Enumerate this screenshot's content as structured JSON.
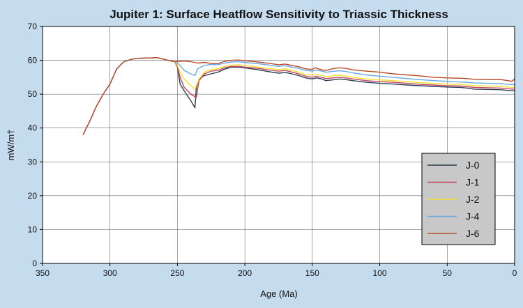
{
  "chart_data": {
    "type": "line",
    "title": "Jupiter 1: Surface Heatflow Sensitivity to Triassic Thickness",
    "xlabel": "Age (Ma)",
    "ylabel": "mW/m†",
    "xlim": [
      350,
      0
    ],
    "ylim": [
      0,
      70
    ],
    "xticks": [
      350,
      300,
      250,
      200,
      150,
      100,
      50,
      0
    ],
    "yticks": [
      0,
      10,
      20,
      30,
      40,
      50,
      60,
      70
    ],
    "x_reversed": true,
    "grid": true,
    "legend_position": "bottom-right",
    "series": [
      {
        "name": "J-0",
        "color": "#2a3d50",
        "points": [
          [
            320,
            38
          ],
          [
            315,
            42
          ],
          [
            310,
            46.5
          ],
          [
            305,
            50
          ],
          [
            300,
            53
          ],
          [
            295,
            57.5
          ],
          [
            290,
            59.5
          ],
          [
            285,
            60.2
          ],
          [
            280,
            60.6
          ],
          [
            270,
            60.7
          ],
          [
            265,
            60.8
          ],
          [
            260,
            60.3
          ],
          [
            255,
            59.8
          ],
          [
            252,
            59.6
          ],
          [
            250,
            58
          ],
          [
            248,
            53
          ],
          [
            245,
            51
          ],
          [
            240,
            48
          ],
          [
            237,
            46
          ],
          [
            236,
            52
          ],
          [
            234,
            54.5
          ],
          [
            230,
            55.5
          ],
          [
            225,
            56
          ],
          [
            220,
            56.5
          ],
          [
            215,
            57.4
          ],
          [
            210,
            58
          ],
          [
            205,
            58
          ],
          [
            200,
            57.8
          ],
          [
            190,
            57.2
          ],
          [
            180,
            56.5
          ],
          [
            175,
            56.2
          ],
          [
            170,
            56.4
          ],
          [
            165,
            56
          ],
          [
            160,
            55.5
          ],
          [
            155,
            54.8
          ],
          [
            150,
            54.5
          ],
          [
            147,
            54.8
          ],
          [
            143,
            54.5
          ],
          [
            140,
            54
          ],
          [
            135,
            54.2
          ],
          [
            130,
            54.5
          ],
          [
            125,
            54.3
          ],
          [
            120,
            54
          ],
          [
            110,
            53.5
          ],
          [
            100,
            53.2
          ],
          [
            90,
            53
          ],
          [
            80,
            52.7
          ],
          [
            70,
            52.5
          ],
          [
            60,
            52.3
          ],
          [
            50,
            52.1
          ],
          [
            40,
            52
          ],
          [
            35,
            51.8
          ],
          [
            30,
            51.5
          ],
          [
            20,
            51.4
          ],
          [
            10,
            51.3
          ],
          [
            5,
            51.1
          ],
          [
            0,
            51
          ]
        ]
      },
      {
        "name": "J-1",
        "color": "#c4425e",
        "points": [
          [
            252,
            59.6
          ],
          [
            250,
            58
          ],
          [
            248,
            55
          ],
          [
            245,
            52
          ],
          [
            240,
            50
          ],
          [
            236,
            49
          ],
          [
            234,
            54
          ],
          [
            230,
            56
          ],
          [
            225,
            56.8
          ],
          [
            220,
            57
          ],
          [
            215,
            57.8
          ],
          [
            210,
            58.2
          ],
          [
            205,
            58.2
          ],
          [
            200,
            58
          ],
          [
            190,
            57.6
          ],
          [
            180,
            57
          ],
          [
            175,
            56.8
          ],
          [
            170,
            57
          ],
          [
            165,
            56.5
          ],
          [
            160,
            56
          ],
          [
            155,
            55.3
          ],
          [
            150,
            55
          ],
          [
            147,
            55.3
          ],
          [
            143,
            55
          ],
          [
            140,
            54.6
          ],
          [
            135,
            54.8
          ],
          [
            130,
            55
          ],
          [
            125,
            54.8
          ],
          [
            120,
            54.5
          ],
          [
            110,
            54
          ],
          [
            100,
            53.7
          ],
          [
            90,
            53.5
          ],
          [
            80,
            53.2
          ],
          [
            70,
            52.9
          ],
          [
            60,
            52.7
          ],
          [
            50,
            52.5
          ],
          [
            40,
            52.4
          ],
          [
            30,
            52
          ],
          [
            20,
            51.9
          ],
          [
            10,
            51.8
          ],
          [
            5,
            51.6
          ],
          [
            0,
            51.5
          ]
        ]
      },
      {
        "name": "J-2",
        "color": "#f3e12c",
        "points": [
          [
            252,
            59.6
          ],
          [
            250,
            58.5
          ],
          [
            248,
            56.5
          ],
          [
            245,
            54.5
          ],
          [
            240,
            52.5
          ],
          [
            237,
            51.5
          ],
          [
            234,
            54.5
          ],
          [
            230,
            56.5
          ],
          [
            225,
            57.3
          ],
          [
            220,
            57.5
          ],
          [
            215,
            58.2
          ],
          [
            210,
            58.6
          ],
          [
            205,
            58.7
          ],
          [
            200,
            58.5
          ],
          [
            190,
            58
          ],
          [
            180,
            57.5
          ],
          [
            175,
            57.3
          ],
          [
            170,
            57.5
          ],
          [
            165,
            57
          ],
          [
            160,
            56.5
          ],
          [
            155,
            55.8
          ],
          [
            150,
            55.6
          ],
          [
            147,
            55.9
          ],
          [
            143,
            55.6
          ],
          [
            140,
            55.2
          ],
          [
            135,
            55.4
          ],
          [
            130,
            55.6
          ],
          [
            125,
            55.4
          ],
          [
            120,
            55
          ],
          [
            110,
            54.5
          ],
          [
            100,
            54.2
          ],
          [
            90,
            54
          ],
          [
            80,
            53.7
          ],
          [
            70,
            53.4
          ],
          [
            60,
            53.2
          ],
          [
            50,
            53
          ],
          [
            40,
            52.9
          ],
          [
            30,
            52.5
          ],
          [
            20,
            52.4
          ],
          [
            10,
            52.3
          ],
          [
            5,
            52.1
          ],
          [
            0,
            52
          ]
        ]
      },
      {
        "name": "J-4",
        "color": "#6aa6e6",
        "points": [
          [
            252,
            59.6
          ],
          [
            250,
            59.2
          ],
          [
            248,
            58.5
          ],
          [
            245,
            57
          ],
          [
            240,
            56
          ],
          [
            237,
            55.5
          ],
          [
            235,
            57.5
          ],
          [
            230,
            58.5
          ],
          [
            225,
            58.8
          ],
          [
            220,
            58.7
          ],
          [
            215,
            59.2
          ],
          [
            210,
            59.5
          ],
          [
            205,
            59.6
          ],
          [
            200,
            59.4
          ],
          [
            190,
            59
          ],
          [
            180,
            58.5
          ],
          [
            175,
            58.2
          ],
          [
            170,
            58.4
          ],
          [
            165,
            58
          ],
          [
            160,
            57.6
          ],
          [
            155,
            57
          ],
          [
            150,
            56.8
          ],
          [
            147,
            57.1
          ],
          [
            143,
            56.8
          ],
          [
            140,
            56.5
          ],
          [
            135,
            56.7
          ],
          [
            130,
            56.9
          ],
          [
            125,
            56.7
          ],
          [
            120,
            56.3
          ],
          [
            110,
            55.7
          ],
          [
            100,
            55.3
          ],
          [
            90,
            55
          ],
          [
            80,
            54.6
          ],
          [
            70,
            54.3
          ],
          [
            60,
            54
          ],
          [
            50,
            53.8
          ],
          [
            40,
            53.6
          ],
          [
            30,
            53.3
          ],
          [
            20,
            53.2
          ],
          [
            10,
            53.1
          ],
          [
            5,
            52.9
          ],
          [
            0,
            52.8
          ]
        ]
      },
      {
        "name": "J-6",
        "color": "#b84a28",
        "points": [
          [
            320,
            38
          ],
          [
            315,
            42
          ],
          [
            310,
            46.5
          ],
          [
            305,
            50
          ],
          [
            300,
            53
          ],
          [
            295,
            57.5
          ],
          [
            290,
            59.5
          ],
          [
            285,
            60.2
          ],
          [
            280,
            60.6
          ],
          [
            270,
            60.7
          ],
          [
            265,
            60.8
          ],
          [
            260,
            60.3
          ],
          [
            255,
            59.8
          ],
          [
            252,
            59.6
          ],
          [
            245,
            59.8
          ],
          [
            240,
            59.6
          ],
          [
            235,
            59.2
          ],
          [
            230,
            59.4
          ],
          [
            225,
            59.1
          ],
          [
            220,
            59
          ],
          [
            215,
            59.7
          ],
          [
            210,
            60
          ],
          [
            205,
            60.1
          ],
          [
            200,
            59.9
          ],
          [
            190,
            59.5
          ],
          [
            180,
            59
          ],
          [
            175,
            58.7
          ],
          [
            170,
            58.9
          ],
          [
            165,
            58.5
          ],
          [
            160,
            58.1
          ],
          [
            155,
            57.5
          ],
          [
            150,
            57.3
          ],
          [
            148,
            57.8
          ],
          [
            143,
            57.2
          ],
          [
            140,
            57
          ],
          [
            135,
            57.5
          ],
          [
            130,
            57.8
          ],
          [
            125,
            57.6
          ],
          [
            120,
            57.2
          ],
          [
            110,
            56.8
          ],
          [
            100,
            56.5
          ],
          [
            90,
            56
          ],
          [
            80,
            55.7
          ],
          [
            70,
            55.4
          ],
          [
            60,
            55
          ],
          [
            50,
            54.8
          ],
          [
            40,
            54.7
          ],
          [
            35,
            54.6
          ],
          [
            30,
            54.4
          ],
          [
            20,
            54.3
          ],
          [
            10,
            54.3
          ],
          [
            5,
            54
          ],
          [
            2,
            53.8
          ],
          [
            0,
            54.5
          ]
        ]
      }
    ]
  }
}
